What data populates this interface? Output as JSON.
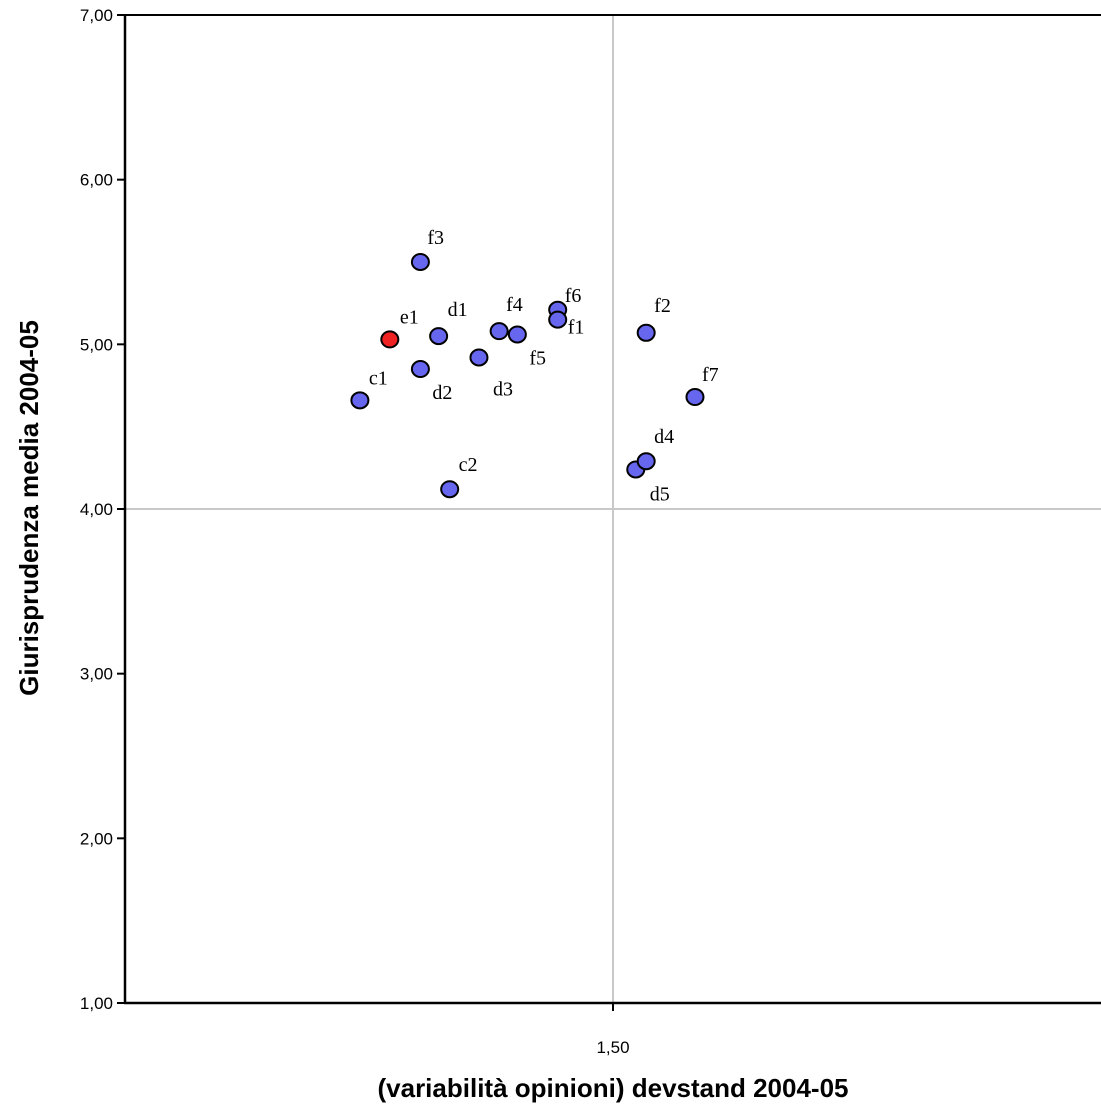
{
  "chart_data": {
    "type": "scatter",
    "xlabel": "(variabilità opinioni) devstand 2004-05",
    "ylabel": "Giurisprudenza media 2004-05",
    "xlim": [
      0.75,
      2.25
    ],
    "ylim": [
      1.0,
      7.0
    ],
    "xticks": [
      {
        "value": 1.5,
        "label": "1,50"
      }
    ],
    "yticks": [
      {
        "value": 1,
        "label": "1,00"
      },
      {
        "value": 2,
        "label": "2,00"
      },
      {
        "value": 3,
        "label": "3,00"
      },
      {
        "value": 4,
        "label": "4,00"
      },
      {
        "value": 5,
        "label": "5,00"
      },
      {
        "value": 6,
        "label": "6,00"
      },
      {
        "value": 7,
        "label": "7,00"
      }
    ],
    "reference_lines": {
      "x": 1.5,
      "y": 4.0
    },
    "colors": {
      "default": "#6666ee",
      "highlight": "#ee2222",
      "reference": "#c8c8c8"
    },
    "points": [
      {
        "label": "c1",
        "x": 1.111,
        "y": 4.66,
        "highlight": false
      },
      {
        "label": "e1",
        "x": 1.157,
        "y": 5.03,
        "highlight": true
      },
      {
        "label": "f3",
        "x": 1.204,
        "y": 5.5,
        "highlight": false
      },
      {
        "label": "d2",
        "x": 1.204,
        "y": 4.85,
        "highlight": false
      },
      {
        "label": "d1",
        "x": 1.232,
        "y": 5.05,
        "highlight": false
      },
      {
        "label": "c2",
        "x": 1.249,
        "y": 4.12,
        "highlight": false
      },
      {
        "label": "d3",
        "x": 1.294,
        "y": 4.92,
        "highlight": false
      },
      {
        "label": "f4",
        "x": 1.325,
        "y": 5.08,
        "highlight": false
      },
      {
        "label": "f5",
        "x": 1.353,
        "y": 5.06,
        "highlight": false
      },
      {
        "label": "f6",
        "x": 1.415,
        "y": 5.21,
        "highlight": false
      },
      {
        "label": "f1",
        "x": 1.415,
        "y": 5.15,
        "highlight": false
      },
      {
        "label": "d5",
        "x": 1.535,
        "y": 4.24,
        "highlight": false
      },
      {
        "label": "d4",
        "x": 1.551,
        "y": 4.29,
        "highlight": false
      },
      {
        "label": "f2",
        "x": 1.551,
        "y": 5.07,
        "highlight": false
      },
      {
        "label": "f7",
        "x": 1.626,
        "y": 4.68,
        "highlight": false
      }
    ]
  }
}
